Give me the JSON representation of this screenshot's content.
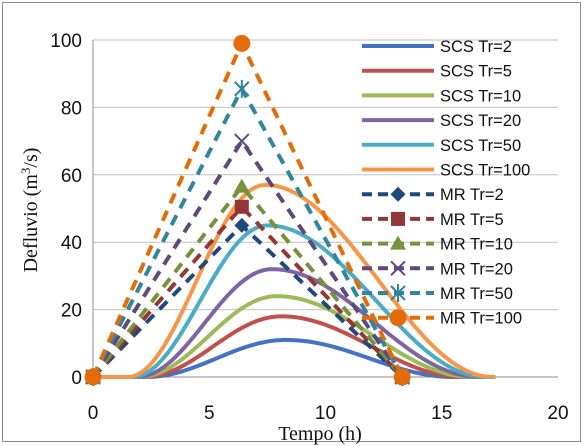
{
  "chart_data": {
    "type": "line",
    "xlabel": "Tempo (h)",
    "ylabel_parts": [
      "Defluvio (m",
      "3",
      "/s)"
    ],
    "xlim": [
      0,
      20
    ],
    "ylim": [
      0,
      100
    ],
    "xticks": [
      0,
      5,
      10,
      15,
      20
    ],
    "yticks": [
      0,
      20,
      40,
      60,
      80,
      100
    ],
    "grid": true,
    "legend_position": "right",
    "series": [
      {
        "name": "SCS Tr=2",
        "color": "#4472c4",
        "style": "curve",
        "peak_x": 8.3,
        "peak_y": 11,
        "start_x": 2.3,
        "end_x": 15.5
      },
      {
        "name": "SCS Tr=5",
        "color": "#c0504d",
        "style": "curve",
        "peak_x": 8.1,
        "peak_y": 18,
        "start_x": 2.2,
        "end_x": 15.9
      },
      {
        "name": "SCS Tr=10",
        "color": "#9bbb59",
        "style": "curve",
        "peak_x": 7.9,
        "peak_y": 24,
        "start_x": 2.0,
        "end_x": 16.3
      },
      {
        "name": "SCS Tr=20",
        "color": "#8064a2",
        "style": "curve",
        "peak_x": 7.7,
        "peak_y": 32,
        "start_x": 1.9,
        "end_x": 16.6
      },
      {
        "name": "SCS Tr=50",
        "color": "#4bacc6",
        "style": "curve",
        "peak_x": 7.5,
        "peak_y": 45,
        "start_x": 1.7,
        "end_x": 16.9
      },
      {
        "name": "SCS Tr=100",
        "color": "#f79646",
        "style": "curve",
        "peak_x": 7.4,
        "peak_y": 57,
        "start_x": 1.5,
        "end_x": 17.2
      },
      {
        "name": "MR Tr=2",
        "color": "#1f497d",
        "style": "dash",
        "marker": "diamond",
        "points": [
          [
            0,
            0
          ],
          [
            6.4,
            45
          ],
          [
            13.3,
            0
          ]
        ]
      },
      {
        "name": "MR Tr=5",
        "color": "#943634",
        "style": "dash",
        "marker": "square",
        "points": [
          [
            0,
            0
          ],
          [
            6.4,
            50.5
          ],
          [
            13.3,
            0
          ]
        ]
      },
      {
        "name": "MR Tr=10",
        "color": "#76923c",
        "style": "dash",
        "marker": "triangle",
        "points": [
          [
            0,
            0
          ],
          [
            6.4,
            56.5
          ],
          [
            13.3,
            0
          ]
        ]
      },
      {
        "name": "MR Tr=20",
        "color": "#5f497a",
        "style": "dash",
        "marker": "x",
        "points": [
          [
            0,
            0
          ],
          [
            6.4,
            70
          ],
          [
            13.3,
            0
          ]
        ]
      },
      {
        "name": "MR Tr=50",
        "color": "#31859c",
        "style": "dash",
        "marker": "star",
        "points": [
          [
            0,
            0
          ],
          [
            6.4,
            85.5
          ],
          [
            13.3,
            0
          ]
        ]
      },
      {
        "name": "MR Tr=100",
        "color": "#e36c09",
        "style": "dash",
        "marker": "circle",
        "points": [
          [
            0,
            0
          ],
          [
            6.4,
            99
          ],
          [
            13.3,
            0
          ]
        ]
      }
    ]
  }
}
